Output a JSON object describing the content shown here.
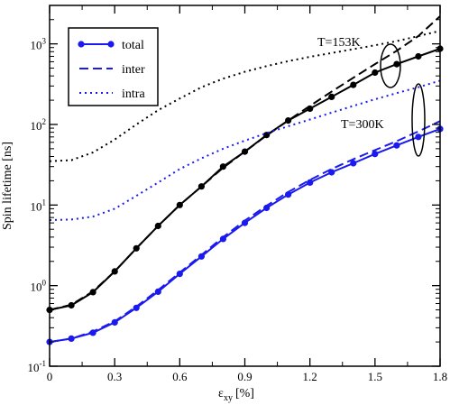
{
  "chart_data": {
    "type": "line",
    "xlabel_main": "ε",
    "xlabel_sub": "xy",
    "xlabel_unit": "[%]",
    "ylabel": "Spin lifetime [ns]",
    "xlim": [
      0,
      1.8
    ],
    "ylim": [
      0.1,
      3000
    ],
    "yscale": "log",
    "grid": false,
    "x_ticks": [
      "0",
      "0.3",
      "0.6",
      "0.9",
      "1.2",
      "1.5",
      "1.8"
    ],
    "y_ticks": [
      {
        "base": "10",
        "exp": "-1"
      },
      {
        "base": "10",
        "exp": "0"
      },
      {
        "base": "10",
        "exp": "1"
      },
      {
        "base": "10",
        "exp": "2"
      },
      {
        "base": "10",
        "exp": "3"
      }
    ],
    "legend": {
      "position": "top-left",
      "entries": [
        "total",
        "inter",
        "intra"
      ]
    },
    "annotations": [
      "T=153K",
      "T=300K"
    ],
    "colors": {
      "T153": "#000000",
      "T300": "#1a1aee"
    },
    "series": [
      {
        "group": "T=153K",
        "kind": "total",
        "markers": true,
        "x": [
          0,
          0.1,
          0.2,
          0.3,
          0.4,
          0.5,
          0.6,
          0.7,
          0.8,
          0.9,
          1.0,
          1.1,
          1.2,
          1.3,
          1.4,
          1.5,
          1.6,
          1.7,
          1.8
        ],
        "y": [
          0.5,
          0.57,
          0.83,
          1.5,
          2.9,
          5.5,
          10,
          17,
          30,
          46,
          74,
          112,
          157,
          220,
          310,
          440,
          560,
          700,
          870
        ]
      },
      {
        "group": "T=153K",
        "kind": "inter",
        "markers": false,
        "x": [
          0,
          0.1,
          0.2,
          0.3,
          0.4,
          0.5,
          0.6,
          0.7,
          0.8,
          0.9,
          1.0,
          1.1,
          1.2,
          1.3,
          1.4,
          1.5,
          1.6,
          1.7,
          1.8
        ],
        "y": [
          0.5,
          0.58,
          0.85,
          1.5,
          2.9,
          5.5,
          10,
          17,
          29,
          46,
          73,
          112,
          170,
          255,
          380,
          560,
          820,
          1250,
          2200
        ]
      },
      {
        "group": "T=153K",
        "kind": "intra",
        "markers": false,
        "x": [
          0,
          0.1,
          0.2,
          0.3,
          0.4,
          0.5,
          0.6,
          0.7,
          0.8,
          0.9,
          1.0,
          1.1,
          1.2,
          1.3,
          1.4,
          1.5,
          1.6,
          1.7,
          1.8
        ],
        "y": [
          35,
          36,
          45,
          65,
          100,
          150,
          210,
          290,
          370,
          450,
          530,
          610,
          690,
          770,
          860,
          960,
          1080,
          1250,
          1450
        ]
      },
      {
        "group": "T=300K",
        "kind": "total",
        "markers": true,
        "x": [
          0,
          0.1,
          0.2,
          0.3,
          0.4,
          0.5,
          0.6,
          0.7,
          0.8,
          0.9,
          1.0,
          1.1,
          1.2,
          1.3,
          1.4,
          1.5,
          1.6,
          1.7,
          1.8
        ],
        "y": [
          0.2,
          0.22,
          0.26,
          0.35,
          0.53,
          0.84,
          1.4,
          2.3,
          3.8,
          6.0,
          9.2,
          13.5,
          19,
          25.5,
          33,
          43,
          55,
          70,
          88
        ]
      },
      {
        "group": "T=300K",
        "kind": "inter",
        "markers": false,
        "x": [
          0,
          0.1,
          0.2,
          0.3,
          0.4,
          0.5,
          0.6,
          0.7,
          0.8,
          0.9,
          1.0,
          1.1,
          1.2,
          1.3,
          1.4,
          1.5,
          1.6,
          1.7,
          1.8
        ],
        "y": [
          0.2,
          0.22,
          0.27,
          0.36,
          0.55,
          0.88,
          1.45,
          2.4,
          4.0,
          6.4,
          9.8,
          14.5,
          20.5,
          28,
          37,
          48,
          62,
          82,
          110
        ]
      },
      {
        "group": "T=300K",
        "kind": "intra",
        "markers": false,
        "x": [
          0,
          0.1,
          0.2,
          0.3,
          0.4,
          0.5,
          0.6,
          0.7,
          0.8,
          0.9,
          1.0,
          1.1,
          1.2,
          1.3,
          1.4,
          1.5,
          1.6,
          1.7,
          1.8
        ],
        "y": [
          6.5,
          6.6,
          7.2,
          9.0,
          13,
          19,
          28,
          38,
          50,
          63,
          78,
          95,
          115,
          140,
          170,
          205,
          245,
          290,
          350
        ]
      }
    ]
  }
}
